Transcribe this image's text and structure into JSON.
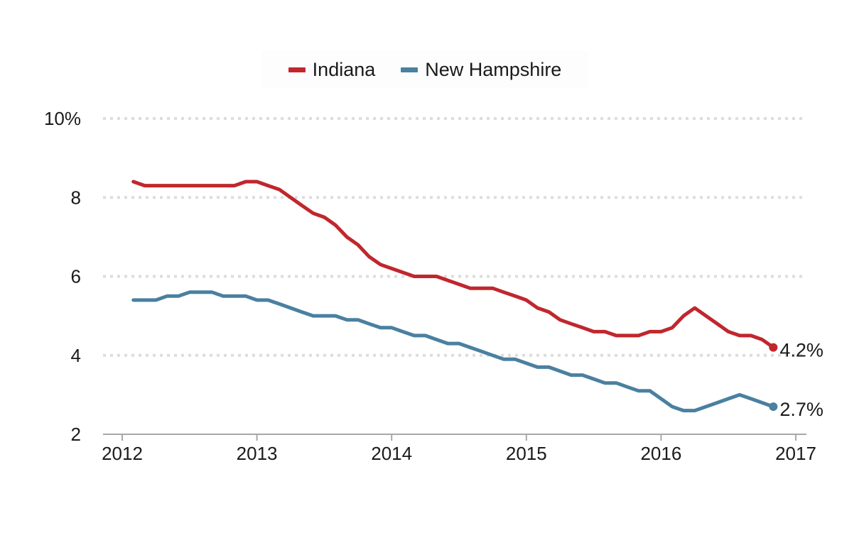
{
  "chart_data": {
    "type": "line",
    "title": "",
    "xlabel": "",
    "ylabel": "",
    "ylim": [
      2,
      10
    ],
    "xlim": [
      2012,
      2017
    ],
    "grid": true,
    "legend_position": "top-center",
    "y_ticks": [
      {
        "value": 10,
        "label": "10%"
      },
      {
        "value": 8,
        "label": "8"
      },
      {
        "value": 6,
        "label": "6"
      },
      {
        "value": 4,
        "label": "4"
      },
      {
        "value": 2,
        "label": "2"
      }
    ],
    "x_ticks": [
      {
        "value": 2012,
        "label": "2012"
      },
      {
        "value": 2013,
        "label": "2013"
      },
      {
        "value": 2014,
        "label": "2014"
      },
      {
        "value": 2015,
        "label": "2015"
      },
      {
        "value": 2016,
        "label": "2016"
      },
      {
        "value": 2017,
        "label": "2017"
      }
    ],
    "series": [
      {
        "name": "Indiana",
        "color": "#c0272d",
        "end_label": "4.2%",
        "points": [
          [
            2012.083,
            8.4
          ],
          [
            2012.167,
            8.3
          ],
          [
            2012.25,
            8.3
          ],
          [
            2012.333,
            8.3
          ],
          [
            2012.417,
            8.3
          ],
          [
            2012.5,
            8.3
          ],
          [
            2012.583,
            8.3
          ],
          [
            2012.667,
            8.3
          ],
          [
            2012.75,
            8.3
          ],
          [
            2012.833,
            8.3
          ],
          [
            2012.917,
            8.4
          ],
          [
            2013.0,
            8.4
          ],
          [
            2013.083,
            8.3
          ],
          [
            2013.167,
            8.2
          ],
          [
            2013.25,
            8.0
          ],
          [
            2013.333,
            7.8
          ],
          [
            2013.417,
            7.6
          ],
          [
            2013.5,
            7.5
          ],
          [
            2013.583,
            7.3
          ],
          [
            2013.667,
            7.0
          ],
          [
            2013.75,
            6.8
          ],
          [
            2013.833,
            6.5
          ],
          [
            2013.917,
            6.3
          ],
          [
            2014.0,
            6.2
          ],
          [
            2014.083,
            6.1
          ],
          [
            2014.167,
            6.0
          ],
          [
            2014.25,
            6.0
          ],
          [
            2014.333,
            6.0
          ],
          [
            2014.417,
            5.9
          ],
          [
            2014.5,
            5.8
          ],
          [
            2014.583,
            5.7
          ],
          [
            2014.667,
            5.7
          ],
          [
            2014.75,
            5.7
          ],
          [
            2014.833,
            5.6
          ],
          [
            2014.917,
            5.5
          ],
          [
            2015.0,
            5.4
          ],
          [
            2015.083,
            5.2
          ],
          [
            2015.167,
            5.1
          ],
          [
            2015.25,
            4.9
          ],
          [
            2015.333,
            4.8
          ],
          [
            2015.417,
            4.7
          ],
          [
            2015.5,
            4.6
          ],
          [
            2015.583,
            4.6
          ],
          [
            2015.667,
            4.5
          ],
          [
            2015.75,
            4.5
          ],
          [
            2015.833,
            4.5
          ],
          [
            2015.917,
            4.6
          ],
          [
            2016.0,
            4.6
          ],
          [
            2016.083,
            4.7
          ],
          [
            2016.167,
            5.0
          ],
          [
            2016.25,
            5.2
          ],
          [
            2016.333,
            5.0
          ],
          [
            2016.417,
            4.8
          ],
          [
            2016.5,
            4.6
          ],
          [
            2016.583,
            4.5
          ],
          [
            2016.667,
            4.5
          ],
          [
            2016.75,
            4.4
          ],
          [
            2016.833,
            4.2
          ]
        ]
      },
      {
        "name": "New Hampshire",
        "color": "#4a80a0",
        "end_label": "2.7%",
        "points": [
          [
            2012.083,
            5.4
          ],
          [
            2012.167,
            5.4
          ],
          [
            2012.25,
            5.4
          ],
          [
            2012.333,
            5.5
          ],
          [
            2012.417,
            5.5
          ],
          [
            2012.5,
            5.6
          ],
          [
            2012.583,
            5.6
          ],
          [
            2012.667,
            5.6
          ],
          [
            2012.75,
            5.5
          ],
          [
            2012.833,
            5.5
          ],
          [
            2012.917,
            5.5
          ],
          [
            2013.0,
            5.4
          ],
          [
            2013.083,
            5.4
          ],
          [
            2013.167,
            5.3
          ],
          [
            2013.25,
            5.2
          ],
          [
            2013.333,
            5.1
          ],
          [
            2013.417,
            5.0
          ],
          [
            2013.5,
            5.0
          ],
          [
            2013.583,
            5.0
          ],
          [
            2013.667,
            4.9
          ],
          [
            2013.75,
            4.9
          ],
          [
            2013.833,
            4.8
          ],
          [
            2013.917,
            4.7
          ],
          [
            2014.0,
            4.7
          ],
          [
            2014.083,
            4.6
          ],
          [
            2014.167,
            4.5
          ],
          [
            2014.25,
            4.5
          ],
          [
            2014.333,
            4.4
          ],
          [
            2014.417,
            4.3
          ],
          [
            2014.5,
            4.3
          ],
          [
            2014.583,
            4.2
          ],
          [
            2014.667,
            4.1
          ],
          [
            2014.75,
            4.0
          ],
          [
            2014.833,
            3.9
          ],
          [
            2014.917,
            3.9
          ],
          [
            2015.0,
            3.8
          ],
          [
            2015.083,
            3.7
          ],
          [
            2015.167,
            3.7
          ],
          [
            2015.25,
            3.6
          ],
          [
            2015.333,
            3.5
          ],
          [
            2015.417,
            3.5
          ],
          [
            2015.5,
            3.4
          ],
          [
            2015.583,
            3.3
          ],
          [
            2015.667,
            3.3
          ],
          [
            2015.75,
            3.2
          ],
          [
            2015.833,
            3.1
          ],
          [
            2015.917,
            3.1
          ],
          [
            2016.0,
            2.9
          ],
          [
            2016.083,
            2.7
          ],
          [
            2016.167,
            2.6
          ],
          [
            2016.25,
            2.6
          ],
          [
            2016.333,
            2.7
          ],
          [
            2016.417,
            2.8
          ],
          [
            2016.5,
            2.9
          ],
          [
            2016.583,
            3.0
          ],
          [
            2016.667,
            2.9
          ],
          [
            2016.75,
            2.8
          ],
          [
            2016.833,
            2.7
          ]
        ]
      }
    ]
  }
}
